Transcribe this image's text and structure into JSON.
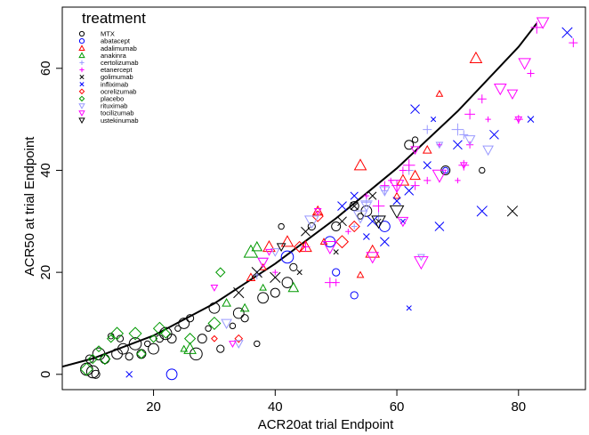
{
  "chart_data": {
    "type": "scatter",
    "title": "",
    "xlabel": "ACR20at trial Endpoint",
    "ylabel": "ACR50 at trial Endpoint",
    "xlim": [
      5,
      91
    ],
    "ylim": [
      -3,
      72
    ],
    "xticks": [
      20,
      40,
      60,
      80
    ],
    "yticks": [
      0,
      20,
      40,
      60
    ],
    "grid": false,
    "legend": {
      "title": "treatment",
      "placement": "top-left",
      "entries": [
        {
          "name": "MTX",
          "color": "#000000",
          "marker": "circle"
        },
        {
          "name": "abatacept",
          "color": "#0000ff",
          "marker": "circle"
        },
        {
          "name": "adalimumab",
          "color": "#ff0000",
          "marker": "triangle-up"
        },
        {
          "name": "anakinra",
          "color": "#009900",
          "marker": "triangle-up"
        },
        {
          "name": "certolizumab",
          "color": "#9999ff",
          "marker": "plus"
        },
        {
          "name": "etanercept",
          "color": "#ff00ff",
          "marker": "plus"
        },
        {
          "name": "golimumab",
          "color": "#000000",
          "marker": "cross"
        },
        {
          "name": "infliximab",
          "color": "#0000ff",
          "marker": "cross"
        },
        {
          "name": "ocrelizumab",
          "color": "#ff0000",
          "marker": "diamond"
        },
        {
          "name": "placebo",
          "color": "#009900",
          "marker": "diamond"
        },
        {
          "name": "rituximab",
          "color": "#9999ff",
          "marker": "triangle-down"
        },
        {
          "name": "tocilizumab",
          "color": "#ff00ff",
          "marker": "triangle-down"
        },
        {
          "name": "ustekinumab",
          "color": "#000000",
          "marker": "triangle-down"
        }
      ]
    },
    "fit_curve": {
      "type": "quadratic",
      "x": [
        5,
        10,
        20,
        30,
        40,
        50,
        60,
        70,
        80,
        83
      ],
      "y": [
        1.5,
        3.1,
        7.6,
        13.9,
        21.7,
        30.6,
        40.4,
        51.6,
        64.2,
        68.8
      ]
    },
    "series": [
      {
        "name": "MTX",
        "points": [
          [
            9,
            1
          ],
          [
            9.5,
            3
          ],
          [
            10,
            0.5
          ],
          [
            10.5,
            0
          ],
          [
            11,
            4
          ],
          [
            12,
            3
          ],
          [
            13,
            7.5
          ],
          [
            14,
            4
          ],
          [
            14.5,
            7
          ],
          [
            15,
            5
          ],
          [
            16,
            3.5
          ],
          [
            17,
            6
          ],
          [
            18,
            4
          ],
          [
            19,
            6
          ],
          [
            20,
            5
          ],
          [
            21,
            7
          ],
          [
            22,
            8
          ],
          [
            23,
            7
          ],
          [
            24,
            9
          ],
          [
            25,
            10
          ],
          [
            26,
            11
          ],
          [
            27,
            4
          ],
          [
            28,
            7
          ],
          [
            29,
            9
          ],
          [
            30,
            13
          ],
          [
            31,
            5
          ],
          [
            33,
            9.5
          ],
          [
            34,
            12
          ],
          [
            35,
            11
          ],
          [
            37,
            6
          ],
          [
            38,
            15
          ],
          [
            40,
            16
          ],
          [
            41,
            29
          ],
          [
            42,
            18
          ],
          [
            43,
            21
          ],
          [
            46,
            29
          ],
          [
            50,
            29
          ],
          [
            53,
            33
          ],
          [
            54,
            31
          ],
          [
            55,
            32
          ],
          [
            62,
            45
          ],
          [
            63,
            46
          ],
          [
            68,
            40
          ],
          [
            74,
            40
          ]
        ]
      },
      {
        "name": "abatacept",
        "points": [
          [
            23,
            0
          ],
          [
            42,
            23
          ],
          [
            49,
            26
          ],
          [
            50,
            20
          ],
          [
            53,
            15.5
          ],
          [
            58,
            29
          ],
          [
            68,
            40
          ]
        ]
      },
      {
        "name": "adalimumab",
        "points": [
          [
            36,
            19
          ],
          [
            38,
            21
          ],
          [
            39,
            25
          ],
          [
            42,
            26
          ],
          [
            45,
            25
          ],
          [
            47,
            32
          ],
          [
            48,
            26
          ],
          [
            54,
            41
          ],
          [
            54,
            19.5
          ],
          [
            56,
            24
          ],
          [
            60,
            35
          ],
          [
            61,
            38
          ],
          [
            63,
            39
          ],
          [
            65,
            44
          ],
          [
            67,
            55
          ],
          [
            73,
            62
          ]
        ]
      },
      {
        "name": "anakinra",
        "points": [
          [
            25,
            5
          ],
          [
            26,
            5
          ],
          [
            32,
            14
          ],
          [
            35,
            13
          ],
          [
            36,
            24
          ],
          [
            37,
            25
          ],
          [
            38,
            17
          ],
          [
            43,
            17
          ]
        ]
      },
      {
        "name": "certolizumab",
        "points": [
          [
            37,
            19.5
          ],
          [
            53,
            29
          ],
          [
            55,
            34
          ],
          [
            57,
            31
          ],
          [
            58,
            36
          ],
          [
            62,
            40
          ],
          [
            65,
            48
          ],
          [
            70,
            48
          ],
          [
            71,
            47
          ]
        ]
      },
      {
        "name": "etanercept",
        "points": [
          [
            40,
            20
          ],
          [
            45,
            25
          ],
          [
            49,
            18
          ],
          [
            50,
            18
          ],
          [
            52,
            28
          ],
          [
            55,
            35
          ],
          [
            57,
            33
          ],
          [
            58,
            37
          ],
          [
            59,
            38
          ],
          [
            60,
            37
          ],
          [
            61,
            40
          ],
          [
            62,
            41
          ],
          [
            63,
            37
          ],
          [
            65,
            38
          ],
          [
            67,
            45
          ],
          [
            70,
            38
          ],
          [
            71,
            41
          ],
          [
            72,
            45
          ],
          [
            72,
            51
          ],
          [
            74,
            54
          ],
          [
            75,
            50
          ],
          [
            80,
            50
          ],
          [
            82,
            59
          ],
          [
            83,
            68
          ],
          [
            89,
            65
          ]
        ]
      },
      {
        "name": "golimumab",
        "points": [
          [
            34,
            16
          ],
          [
            37,
            20
          ],
          [
            40,
            19
          ],
          [
            44,
            20
          ],
          [
            45,
            28
          ],
          [
            50,
            24
          ],
          [
            51,
            30
          ],
          [
            53,
            33
          ],
          [
            56,
            35
          ],
          [
            57,
            30
          ],
          [
            79,
            32
          ]
        ]
      },
      {
        "name": "infliximab",
        "points": [
          [
            16,
            0
          ],
          [
            51,
            33
          ],
          [
            53,
            35
          ],
          [
            55,
            27
          ],
          [
            56,
            30
          ],
          [
            58,
            26
          ],
          [
            60,
            34
          ],
          [
            61,
            30
          ],
          [
            62,
            36
          ],
          [
            62,
            13
          ],
          [
            63,
            52
          ],
          [
            65,
            41
          ],
          [
            66,
            50
          ],
          [
            67,
            29
          ],
          [
            70,
            45
          ],
          [
            74,
            32
          ],
          [
            76,
            47
          ],
          [
            82,
            50
          ],
          [
            88,
            67
          ]
        ]
      },
      {
        "name": "ocrelizumab",
        "points": [
          [
            30,
            7
          ],
          [
            34,
            7
          ],
          [
            44,
            25
          ],
          [
            47,
            31
          ],
          [
            51,
            26
          ],
          [
            53,
            29
          ]
        ]
      },
      {
        "name": "placebo",
        "points": [
          [
            9,
            1
          ],
          [
            10,
            3
          ],
          [
            11,
            5
          ],
          [
            12,
            3
          ],
          [
            13,
            7
          ],
          [
            14,
            8
          ],
          [
            17,
            8
          ],
          [
            18,
            4
          ],
          [
            20,
            7
          ],
          [
            21,
            9
          ],
          [
            22,
            8
          ],
          [
            26,
            7
          ],
          [
            30,
            10
          ],
          [
            31,
            20
          ]
        ]
      },
      {
        "name": "rituximab",
        "points": [
          [
            32,
            10
          ],
          [
            34,
            6
          ],
          [
            38,
            22
          ],
          [
            40,
            24
          ],
          [
            46,
            30
          ],
          [
            54,
            31
          ],
          [
            55,
            33
          ],
          [
            58,
            36
          ],
          [
            64,
            23
          ],
          [
            67,
            45
          ],
          [
            72,
            46
          ],
          [
            75,
            44
          ]
        ]
      },
      {
        "name": "tocilizumab",
        "points": [
          [
            30,
            17
          ],
          [
            33,
            6
          ],
          [
            38,
            22
          ],
          [
            39,
            24
          ],
          [
            47,
            32
          ],
          [
            49,
            25
          ],
          [
            56,
            23
          ],
          [
            60,
            37
          ],
          [
            61,
            30
          ],
          [
            63,
            44
          ],
          [
            64,
            22
          ],
          [
            67,
            39
          ],
          [
            71,
            41
          ],
          [
            77,
            56
          ],
          [
            79,
            55
          ],
          [
            80,
            50
          ],
          [
            81,
            61
          ],
          [
            84,
            69
          ]
        ]
      },
      {
        "name": "ustekinumab",
        "points": [
          [
            41,
            25
          ],
          [
            57,
            30
          ],
          [
            60,
            32
          ]
        ]
      }
    ]
  }
}
